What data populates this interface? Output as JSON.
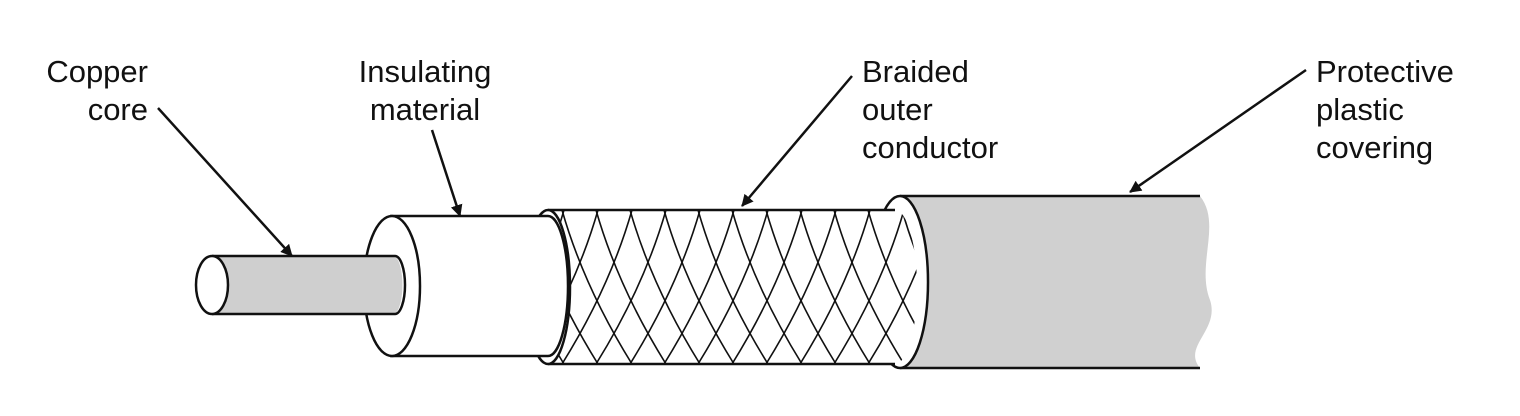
{
  "diagram": {
    "labels": {
      "copper_core": {
        "line1": "Copper",
        "line2": "core"
      },
      "insulating_material": {
        "line1": "Insulating",
        "line2": "material"
      },
      "braided_outer_conductor": {
        "line1": "Braided",
        "line2": "outer",
        "line3": "conductor"
      },
      "protective_plastic_covering": {
        "line1": "Protective",
        "line2": "plastic",
        "line3": "covering"
      }
    },
    "colors": {
      "stroke": "#111111",
      "copper_fill": "#cfcfcf",
      "jacket_fill": "#d0d0d0",
      "insulation_fill": "#ffffff",
      "braid_fill": "#ffffff",
      "background": "#ffffff"
    }
  }
}
